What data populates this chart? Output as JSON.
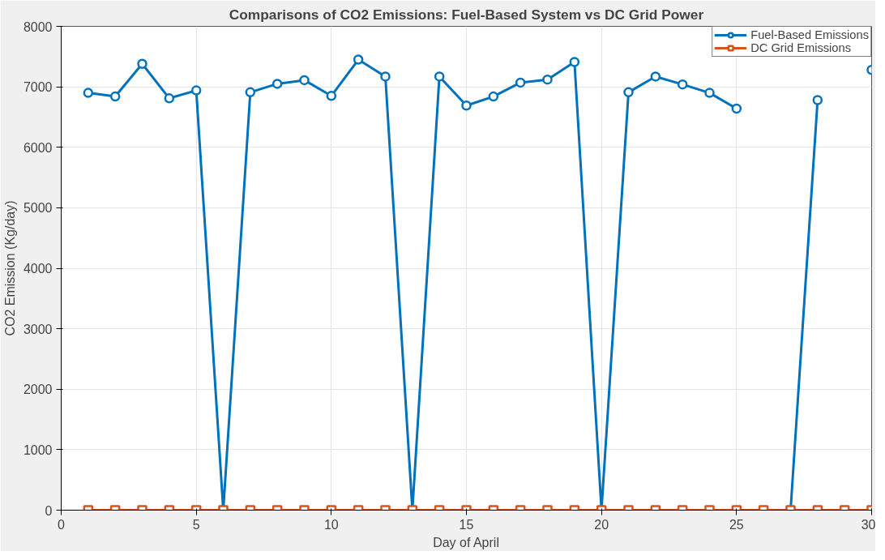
{
  "chart_data": {
    "type": "line",
    "title": "Comparisons of CO2 Emissions: Fuel-Based System vs DC Grid Power",
    "xlabel": "Day of April",
    "ylabel": "CO2 Emission (Kg/day)",
    "x": [
      1,
      2,
      3,
      4,
      5,
      6,
      7,
      8,
      9,
      10,
      11,
      12,
      13,
      14,
      15,
      16,
      17,
      18,
      19,
      20,
      21,
      22,
      23,
      24,
      25,
      26,
      27,
      28,
      29,
      30
    ],
    "series": [
      {
        "name": "Fuel-Based Emissions",
        "color": "#0072bd",
        "marker": "circle",
        "values": [
          6900,
          6840,
          7380,
          6810,
          6940,
          0,
          6910,
          7050,
          7110,
          6850,
          7450,
          7170,
          0,
          7170,
          6690,
          6840,
          7070,
          7120,
          7410,
          0,
          6910,
          7170,
          7040,
          6900,
          6640,
          null,
          0,
          6780,
          null,
          7280
        ]
      },
      {
        "name": "DC Grid Emissions",
        "color": "#d95319",
        "marker": "square",
        "values": [
          0,
          0,
          0,
          0,
          0,
          0,
          0,
          0,
          0,
          0,
          0,
          0,
          0,
          0,
          0,
          0,
          0,
          0,
          0,
          0,
          0,
          0,
          0,
          0,
          0,
          0,
          0,
          0,
          0,
          0
        ]
      }
    ],
    "xlim": [
      0,
      30
    ],
    "xticks": [
      0,
      5,
      10,
      15,
      20,
      25,
      30
    ],
    "ylim": [
      0,
      8000
    ],
    "yticks": [
      0,
      1000,
      2000,
      3000,
      4000,
      5000,
      6000,
      7000,
      8000
    ],
    "grid": true,
    "legend": "top right",
    "line_style": "solid"
  }
}
